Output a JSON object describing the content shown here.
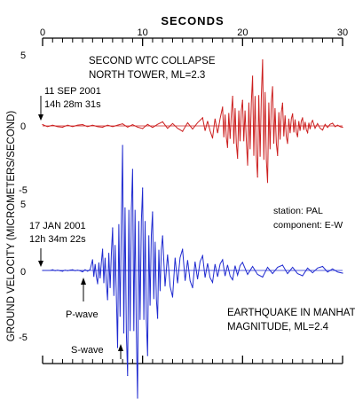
{
  "chart_data": {
    "type": "line",
    "x_axis": {
      "label": "SECONDS",
      "range": [
        0,
        30
      ],
      "ticks": [
        0,
        10,
        20,
        30
      ],
      "minor_step": 1
    },
    "y_axis": {
      "label": "GROUND VELOCITY (MICROMETERS/SECOND)"
    },
    "grid": false,
    "panels": [
      {
        "id": "wtc",
        "color": "#cc1f1f",
        "ylim": [
          -5,
          5
        ],
        "tick_labels": [
          "5",
          "0",
          "-5"
        ],
        "title_lines": [
          "SECOND WTC  COLLAPSE",
          "NORTH TOWER, ML=2.3"
        ],
        "start_time": [
          "11 SEP 2001",
          "14h 28m 31s"
        ],
        "series": {
          "name": "",
          "x": [
            0,
            2,
            4,
            6,
            8,
            10,
            12,
            14,
            16,
            17,
            18,
            18.5,
            19,
            19.5,
            20,
            20.5,
            21,
            21.5,
            22,
            22.5,
            23,
            23.5,
            24,
            24.5,
            25,
            25.5,
            26,
            26.5,
            27,
            28,
            29,
            30
          ],
          "values": [
            0.1,
            -0.1,
            0.1,
            -0.1,
            0.15,
            -0.2,
            0.3,
            -0.4,
            0.6,
            -0.9,
            1.4,
            -1.6,
            2.2,
            -2.4,
            1.9,
            -2.9,
            3.7,
            -3.8,
            4.9,
            -4.2,
            2.9,
            -2.2,
            1.7,
            -1.3,
            0.9,
            -0.8,
            0.6,
            -0.5,
            0.4,
            -0.3,
            0.2,
            -0.1
          ]
        }
      },
      {
        "id": "earthquake",
        "color": "#1f2ad0",
        "ylim": [
          -5,
          5
        ],
        "tick_labels": [
          "5",
          "0",
          "-5"
        ],
        "title_lines": [
          "EARTHQUAKE IN MANHATTAN",
          "MAGNITUDE, ML=2.4"
        ],
        "start_time": [
          "17 JAN 2001",
          "12h 34m 22s"
        ],
        "station": "station: PAL",
        "component": "component: E-W",
        "series": {
          "name": "",
          "x": [
            0,
            1,
            2,
            3,
            4,
            5,
            5.5,
            6,
            6.5,
            7,
            7.5,
            8,
            8.5,
            9,
            9.5,
            10,
            10.5,
            11,
            11.5,
            12,
            13,
            14,
            15,
            16,
            17,
            18,
            19,
            20,
            22,
            24,
            26,
            28,
            30
          ],
          "values": [
            0,
            0.05,
            -0.05,
            0.05,
            -0.1,
            0.8,
            -1.0,
            1.6,
            -2.2,
            3.2,
            -5.8,
            9.4,
            -7.9,
            7.6,
            -9.6,
            6.2,
            -6.4,
            4.4,
            -3.6,
            2.6,
            -2.0,
            1.6,
            -1.3,
            1.1,
            -0.9,
            0.8,
            -0.7,
            0.6,
            -0.5,
            0.4,
            -0.4,
            0.3,
            -0.2
          ]
        }
      }
    ],
    "annotations": {
      "p_wave": "P-wave",
      "s_wave": "S-wave"
    }
  }
}
